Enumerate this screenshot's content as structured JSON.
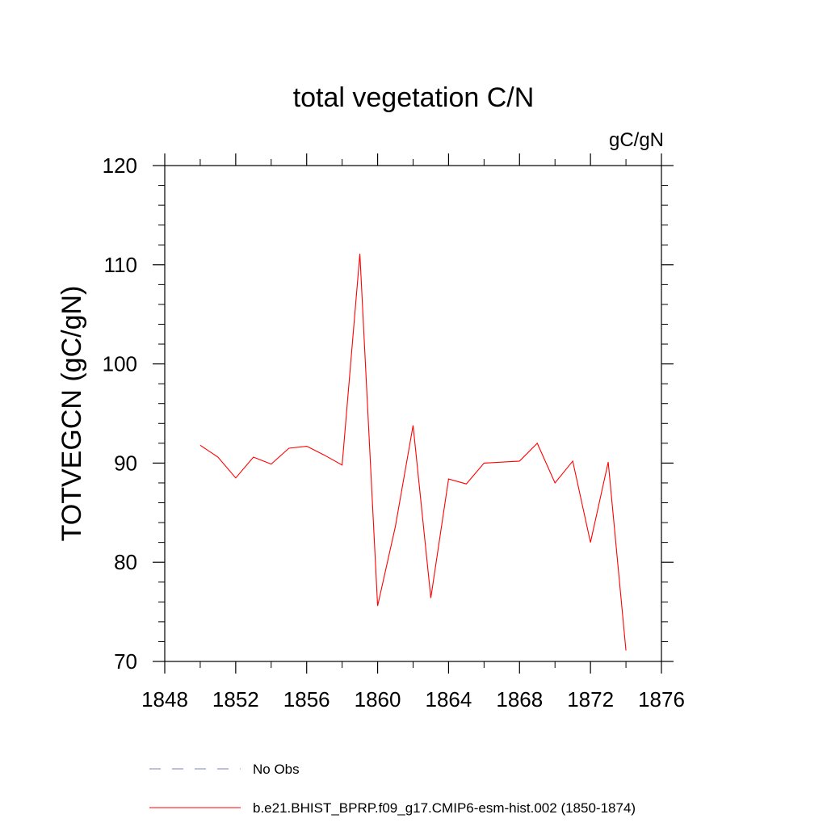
{
  "chart_data": {
    "type": "line",
    "title": "total vegetation C/N",
    "units_label": "gC/gN",
    "ylabel": "TOTVEGCN  (gC/gN)",
    "xlabel": "",
    "xlim": [
      1848,
      1876
    ],
    "ylim": [
      70,
      120
    ],
    "x_ticks": [
      1848,
      1852,
      1856,
      1860,
      1864,
      1868,
      1872,
      1876
    ],
    "x_minor_step": 2,
    "y_ticks": [
      70,
      80,
      90,
      100,
      110,
      120
    ],
    "y_minor_step": 2,
    "grid": false,
    "series": [
      {
        "name": "b.e21.BHIST_BPRP.f09_g17.CMIP6-esm-hist.002 (1850-1874)",
        "color": "#ff0000",
        "dash": "solid",
        "x": [
          1850,
          1851,
          1852,
          1853,
          1854,
          1855,
          1856,
          1857,
          1858,
          1859,
          1860,
          1861,
          1862,
          1863,
          1864,
          1865,
          1866,
          1867,
          1868,
          1869,
          1870,
          1871,
          1872,
          1873,
          1874
        ],
        "values": [
          91.8,
          90.6,
          88.5,
          90.6,
          89.9,
          91.5,
          91.7,
          90.8,
          89.8,
          111.1,
          75.6,
          83.6,
          93.8,
          76.4,
          88.4,
          87.9,
          90.0,
          90.1,
          90.2,
          92.0,
          88.0,
          90.2,
          82.0,
          90.1,
          71.1
        ]
      }
    ],
    "legend": [
      {
        "label": "No Obs",
        "color": "#7f7fbf",
        "dash": "dashed"
      },
      {
        "label": "b.e21.BHIST_BPRP.f09_g17.CMIP6-esm-hist.002 (1850-1874)",
        "color": "#ff0000",
        "dash": "solid"
      }
    ],
    "legend_position": "bottom"
  }
}
